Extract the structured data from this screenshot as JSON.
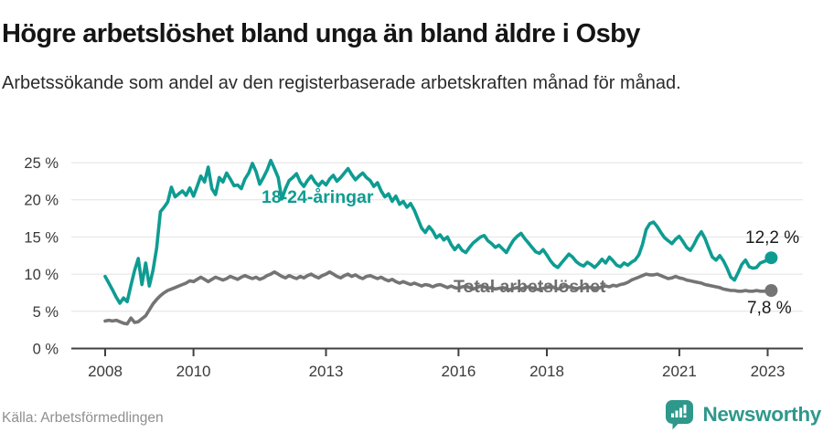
{
  "header": {
    "title": "Högre arbetslöshet bland unga än bland äldre i Osby",
    "subtitle": "Arbetssökande som andel av den registerbaserade arbetskraften månad för månad."
  },
  "chart_data": {
    "type": "line",
    "title": "Högre arbetslöshet bland unga än bland äldre i Osby",
    "unit": "%",
    "x_range": [
      "2008-01",
      "2023-02"
    ],
    "x_step": "month",
    "ylim": [
      0,
      26
    ],
    "grid": "horizontal",
    "legend_position": "inline-labels",
    "y_tick_labels": [
      "25 %",
      "20 %",
      "15 %",
      "10 %",
      "5 %",
      "0 %"
    ],
    "x_tick_labels": [
      "2008",
      "2010",
      "2013",
      "2016",
      "2018",
      "2021",
      "2023"
    ],
    "series": [
      {
        "name": "18-24-åringar",
        "color": "#0E9C92",
        "end_label": "12,2 %",
        "end_value": 12.2,
        "values": [
          9.7,
          8.8,
          7.9,
          6.9,
          6.1,
          6.8,
          6.3,
          8.5,
          10.5,
          12.1,
          8.6,
          11.5,
          8.4,
          10.5,
          13.5,
          18.4,
          19.0,
          19.7,
          21.7,
          20.4,
          20.8,
          21.2,
          20.6,
          21.6,
          20.5,
          21.8,
          23.2,
          22.4,
          24.4,
          21.5,
          20.7,
          23.0,
          22.4,
          23.6,
          22.8,
          21.9,
          22.0,
          21.5,
          22.8,
          23.6,
          24.9,
          23.8,
          22.1,
          23.0,
          24.0,
          25.3,
          24.2,
          23.0,
          20.1,
          21.5,
          22.6,
          23.0,
          23.5,
          22.4,
          21.8,
          22.6,
          23.2,
          22.4,
          21.9,
          22.5,
          22.0,
          22.8,
          23.3,
          22.5,
          23.0,
          23.6,
          24.2,
          23.4,
          22.7,
          23.2,
          23.6,
          23.0,
          22.6,
          21.8,
          22.3,
          21.2,
          20.4,
          20.8,
          19.8,
          20.5,
          19.4,
          19.8,
          19.0,
          19.5,
          18.6,
          17.4,
          16.2,
          15.6,
          16.4,
          15.8,
          14.9,
          15.3,
          14.6,
          15.0,
          14.0,
          13.3,
          13.9,
          13.2,
          12.9,
          13.6,
          14.2,
          14.6,
          15.0,
          15.2,
          14.5,
          14.1,
          13.6,
          13.9,
          13.4,
          12.9,
          13.8,
          14.6,
          15.1,
          15.5,
          14.8,
          14.2,
          13.6,
          13.0,
          12.8,
          13.3,
          12.6,
          11.8,
          11.2,
          10.9,
          11.5,
          12.1,
          12.7,
          12.3,
          11.7,
          11.3,
          11.1,
          11.6,
          11.3,
          10.9,
          11.4,
          12.0,
          11.5,
          12.3,
          11.8,
          11.2,
          11.0,
          11.5,
          11.2,
          11.6,
          11.9,
          12.6,
          14.0,
          16.0,
          16.8,
          17.0,
          16.4,
          15.6,
          14.9,
          14.5,
          14.1,
          14.7,
          15.1,
          14.4,
          13.6,
          13.2,
          14.0,
          15.0,
          15.7,
          14.8,
          13.5,
          12.3,
          11.9,
          12.5,
          11.8,
          10.8,
          9.6,
          9.2,
          10.2,
          11.3,
          11.9,
          11.0,
          10.8,
          10.9,
          11.5,
          11.7,
          11.9,
          12.2
        ]
      },
      {
        "name": "Total arbetslöshet",
        "color": "#747474",
        "end_label": "7,8 %",
        "end_value": 7.8,
        "values": [
          3.7,
          3.8,
          3.7,
          3.8,
          3.6,
          3.4,
          3.3,
          4.1,
          3.5,
          3.6,
          4.0,
          4.4,
          5.2,
          6.0,
          6.6,
          7.1,
          7.5,
          7.8,
          8.0,
          8.2,
          8.4,
          8.6,
          8.8,
          9.1,
          9.0,
          9.3,
          9.6,
          9.3,
          9.0,
          9.3,
          9.6,
          9.4,
          9.2,
          9.4,
          9.7,
          9.5,
          9.3,
          9.6,
          9.8,
          9.6,
          9.4,
          9.6,
          9.3,
          9.5,
          9.8,
          10.0,
          10.3,
          10.0,
          9.7,
          9.5,
          9.8,
          9.6,
          9.4,
          9.7,
          9.5,
          9.8,
          10.0,
          9.7,
          9.5,
          9.8,
          10.0,
          10.3,
          10.0,
          9.7,
          9.5,
          9.8,
          10.0,
          9.7,
          9.9,
          9.6,
          9.4,
          9.7,
          9.8,
          9.6,
          9.4,
          9.6,
          9.3,
          9.1,
          9.3,
          9.0,
          8.8,
          9.0,
          8.8,
          8.6,
          8.8,
          8.6,
          8.4,
          8.6,
          8.5,
          8.3,
          8.5,
          8.6,
          8.4,
          8.2,
          8.4,
          8.2,
          8.1,
          8.3,
          8.4,
          8.2,
          8.0,
          8.2,
          8.4,
          8.3,
          8.1,
          8.2,
          8.0,
          8.1,
          8.2,
          8.0,
          7.9,
          8.1,
          8.2,
          8.0,
          8.2,
          8.3,
          8.1,
          8.0,
          7.9,
          8.1,
          8.2,
          8.4,
          8.2,
          8.0,
          8.2,
          8.4,
          8.3,
          8.1,
          8.0,
          8.2,
          8.1,
          8.3,
          8.2,
          8.0,
          8.1,
          8.3,
          8.4,
          8.3,
          8.5,
          8.4,
          8.6,
          8.7,
          8.9,
          9.2,
          9.4,
          9.6,
          9.8,
          10.0,
          9.9,
          9.9,
          10.0,
          9.8,
          9.6,
          9.4,
          9.5,
          9.7,
          9.5,
          9.4,
          9.2,
          9.1,
          9.0,
          8.9,
          8.8,
          8.6,
          8.5,
          8.4,
          8.3,
          8.2,
          8.0,
          7.9,
          7.8,
          7.8,
          7.7,
          7.7,
          7.8,
          7.7,
          7.7,
          7.8,
          7.7,
          7.7,
          7.7,
          7.8
        ]
      }
    ]
  },
  "footer": {
    "source": "Källa: Arbetsförmedlingen",
    "brand": "Newsworthy"
  },
  "colors": {
    "youth_line": "#0E9C92",
    "total_line": "#747474",
    "grid": "#e2e2e2",
    "axis": "#404040",
    "brand_teal": "#2e988b"
  }
}
